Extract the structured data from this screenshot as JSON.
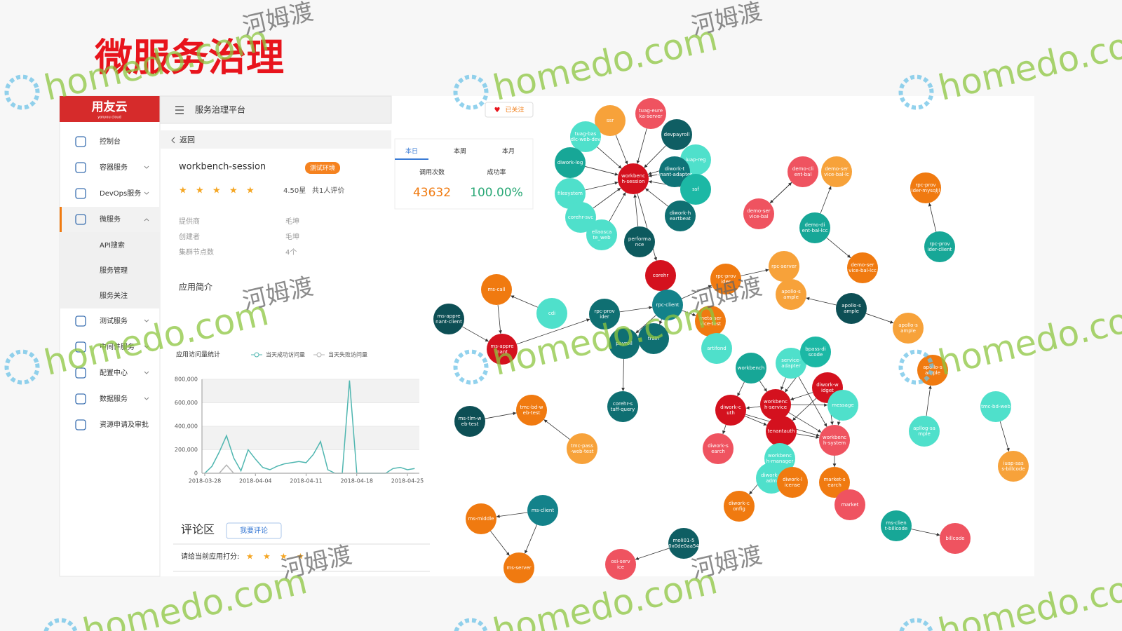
{
  "title": "微服务治理",
  "watermark": {
    "site": "homedo.com",
    "name": "河姆渡"
  },
  "sidebar": {
    "logo": "用友云",
    "logo_sub": "yonyou cloud",
    "menu": [
      "控制台",
      "容器服务",
      "DevOps服务",
      "微服务",
      "API搜索",
      "服务管理",
      "服务关注",
      "测试服务",
      "中间件服务",
      "配置中心",
      "数据服务",
      "资源申请及审批"
    ]
  },
  "header": {
    "title": "服务治理平台",
    "back": "返回"
  },
  "service": {
    "name": "workbench-session",
    "tag": "测试环境",
    "rating": "4.50星",
    "reviews": "共1人评价",
    "fields": [
      {
        "label": "提供商",
        "value": "毛坤"
      },
      {
        "label": "创建者",
        "value": "毛坤"
      },
      {
        "label": "集群节点数",
        "value": "4个"
      }
    ],
    "intro": "应用简介"
  },
  "chart_data": {
    "type": "line",
    "title": "应用访问量统计",
    "x": [
      "2018-03-28",
      "2018-03-29",
      "2018-03-30",
      "2018-03-31",
      "2018-04-01",
      "2018-04-02",
      "2018-04-03",
      "2018-04-04",
      "2018-04-05",
      "2018-04-06",
      "2018-04-07",
      "2018-04-08",
      "2018-04-09",
      "2018-04-10",
      "2018-04-11",
      "2018-04-12",
      "2018-04-13",
      "2018-04-14",
      "2018-04-15",
      "2018-04-16",
      "2018-04-17",
      "2018-04-18",
      "2018-04-19",
      "2018-04-20",
      "2018-04-21",
      "2018-04-22",
      "2018-04-23",
      "2018-04-24",
      "2018-04-25",
      "2018-04-26"
    ],
    "series": [
      {
        "name": "当天成功访问量",
        "color": "#4fb6b0",
        "values": [
          0,
          60000,
          180000,
          320000,
          130000,
          20000,
          200000,
          120000,
          50000,
          30000,
          60000,
          80000,
          90000,
          100000,
          90000,
          160000,
          270000,
          30000,
          0,
          0,
          790000,
          0,
          0,
          0,
          0,
          0,
          40000,
          50000,
          30000,
          40000
        ]
      },
      {
        "name": "当天失败访问量",
        "color": "#b5b5b5",
        "values": [
          0,
          0,
          0,
          70000,
          0,
          0,
          0,
          0,
          0,
          0,
          0,
          0,
          0,
          0,
          0,
          0,
          0,
          0,
          0,
          0,
          0,
          0,
          0,
          0,
          0,
          0,
          0,
          0,
          0,
          0
        ]
      }
    ],
    "ylim": [
      0,
      800000
    ],
    "yticks": [
      0,
      {
        "value": 200000,
        "label": "200,000"
      },
      {
        "value": 400000,
        "label": "400,000"
      },
      {
        "value": 600000,
        "label": "600,000"
      },
      {
        "value": 800000,
        "label": "800,000"
      }
    ],
    "xticks": [
      "2018-03-28",
      "2018-04-04",
      "2018-04-11",
      "2018-04-18",
      "2018-04-25"
    ],
    "grid": true
  },
  "stats": {
    "tabs": [
      "本日",
      "本周",
      "本月"
    ],
    "calls_label": "调用次数",
    "calls": "43632",
    "success_label": "成功率",
    "success": "100.00%"
  },
  "follow": "已关注",
  "comments": {
    "title": "评论区",
    "button": "我要评论",
    "prompt": "请给当前应用打分:"
  },
  "nodes": [
    {
      "label": [
        "ssr"
      ],
      "color": "#f7a23a"
    },
    {
      "label": [
        "tuag-eure",
        "ka-server"
      ],
      "color": "#ef5360"
    },
    {
      "label": [
        "devpayroll"
      ],
      "color": "#0f5e63"
    },
    {
      "label": [
        "tuag-bas",
        "dlc-web-dev"
      ],
      "color": "#4fe0cb"
    },
    {
      "label": [
        "diwork-log"
      ],
      "color": "#17a797"
    },
    {
      "label": [
        "workbenc",
        "h-session"
      ],
      "color": "#d4111e"
    },
    {
      "label": [
        "iuap-reg"
      ],
      "color": "#4fe0cb"
    },
    {
      "label": [
        "diwork-t",
        "enant-adapter"
      ],
      "color": "#0f7478"
    },
    {
      "label": [
        "filesystem"
      ],
      "color": "#4fe0cb"
    },
    {
      "label": [
        "ssf"
      ],
      "color": "#1cb8a5"
    },
    {
      "label": [
        "corehr-svc"
      ],
      "color": "#4fe0cb"
    },
    {
      "label": [
        "diwork-h",
        "eartbeat"
      ],
      "color": "#0f6f72"
    },
    {
      "label": [
        "ellaosca",
        "te_web"
      ],
      "color": "#4fe0cb"
    },
    {
      "label": [
        "performa",
        "nce"
      ],
      "color": "#0d5a5e"
    },
    {
      "label": [
        "corehr"
      ],
      "color": "#d4111e"
    },
    {
      "label": [
        "rpc-prov",
        "ider"
      ],
      "color": "#0f6f72"
    },
    {
      "label": [
        "rpc-client"
      ],
      "color": "#13828a"
    },
    {
      "label": [
        "payroll"
      ],
      "color": "#0f6f72"
    },
    {
      "label": [
        "train"
      ],
      "color": "#0f6f72"
    },
    {
      "label": [
        "corehr-s",
        "taff-query"
      ],
      "color": "#0f6f72"
    },
    {
      "label": [
        "ms-call"
      ],
      "color": "#f07a10"
    },
    {
      "label": [
        "cdi"
      ],
      "color": "#4fe0cb"
    },
    {
      "label": [
        "ms-appre",
        "nant-client"
      ],
      "color": "#0d4f55"
    },
    {
      "label": [
        "ms-appre",
        "nant"
      ],
      "color": "#d4111e"
    },
    {
      "label": [
        "ms-tlm-w",
        "eb-test"
      ],
      "color": "#0d4f55"
    },
    {
      "label": [
        "tmc-bd-w",
        "eb-test"
      ],
      "color": "#f07a10"
    },
    {
      "label": [
        "tmc-pass",
        "-web-test"
      ],
      "color": "#f7a23a"
    },
    {
      "label": [
        "ms-middle"
      ],
      "color": "#f07a10"
    },
    {
      "label": [
        "ms-client"
      ],
      "color": "#13828a"
    },
    {
      "label": [
        "ms-server"
      ],
      "color": "#f07a10"
    },
    {
      "label": [
        "rpc-prov",
        "ider"
      ],
      "color": "#f07a10"
    },
    {
      "label": [
        "rpc-server"
      ],
      "color": "#f7a23a"
    },
    {
      "label": [
        "apollo-s",
        "ample"
      ],
      "color": "#f7a23a"
    },
    {
      "label": [
        "meta-ser",
        "vice-test"
      ],
      "color": "#f07a10"
    },
    {
      "label": [
        "artifond"
      ],
      "color": "#4fe0cb"
    },
    {
      "label": [
        "workbench"
      ],
      "color": "#17a797"
    },
    {
      "label": [
        "service-",
        "adapter"
      ],
      "color": "#4fe0cb"
    },
    {
      "label": [
        "bpass-di",
        "scode"
      ],
      "color": "#1cb8a5"
    },
    {
      "label": [
        "diwork-w",
        "idget"
      ],
      "color": "#d4111e"
    },
    {
      "label": [
        "workbenc",
        "h-service"
      ],
      "color": "#d4111e"
    },
    {
      "label": [
        "diwork-c",
        "uth"
      ],
      "color": "#d4111e"
    },
    {
      "label": [
        "message"
      ],
      "color": "#4fe0cb"
    },
    {
      "label": [
        "tenantauth"
      ],
      "color": "#d4111e"
    },
    {
      "label": [
        "workbenc",
        "h-system"
      ],
      "color": "#ef5360"
    },
    {
      "label": [
        "diwork-s",
        "earch"
      ],
      "color": "#ef5360"
    },
    {
      "label": [
        "workbenc",
        "h-manager"
      ],
      "color": "#4fe0cb"
    },
    {
      "label": [
        "diwork-c",
        "adm"
      ],
      "color": "#4fe0cb"
    },
    {
      "label": [
        "diwork-l",
        "icense"
      ],
      "color": "#f07a10"
    },
    {
      "label": [
        "market-s",
        "earch"
      ],
      "color": "#f07a10"
    },
    {
      "label": [
        "market"
      ],
      "color": "#ef5360"
    },
    {
      "label": [
        "diwork-c",
        "onfig"
      ],
      "color": "#f07a10"
    },
    {
      "label": [
        "moli01-5",
        "0x0de0aa54"
      ],
      "color": "#0f5e63"
    },
    {
      "label": [
        "osi-serv",
        "ice"
      ],
      "color": "#ef5360"
    },
    {
      "label": [
        "demo-cli",
        "ent-bal"
      ],
      "color": "#ef5360"
    },
    {
      "label": [
        "demo-ser",
        "vice-bal-lc"
      ],
      "color": "#f7a23a"
    },
    {
      "label": [
        "demo-ser",
        "vice-bal"
      ],
      "color": "#ef5360"
    },
    {
      "label": [
        "demo-di",
        "ent-bal-lcc"
      ],
      "color": "#17a797"
    },
    {
      "label": [
        "demo-ser",
        "vice-bal-lcc"
      ],
      "color": "#f07a10"
    },
    {
      "label": [
        "apollo-s",
        "ample"
      ],
      "color": "#0d4f55"
    },
    {
      "label": [
        "apollo-s",
        "ample"
      ],
      "color": "#f7a23a"
    },
    {
      "label": [
        "rpc-prov",
        "ider-mysqlJl"
      ],
      "color": "#f07a10"
    },
    {
      "label": [
        "rpc-prov",
        "ider-client"
      ],
      "color": "#17a797"
    },
    {
      "label": [
        "apollo-s",
        "ample"
      ],
      "color": "#f07a10"
    },
    {
      "label": [
        "apllog-sa",
        "mple"
      ],
      "color": "#4fe0cb"
    },
    {
      "label": [
        "tmc-bd-web"
      ],
      "color": "#4fe0cb"
    },
    {
      "label": [
        "iuap-sas",
        "s-billcode"
      ],
      "color": "#f7a23a"
    },
    {
      "label": [
        "ms-clien",
        "t-billcode"
      ],
      "color": "#17a797"
    },
    {
      "label": [
        "billcode"
      ],
      "color": "#ef5360"
    }
  ]
}
